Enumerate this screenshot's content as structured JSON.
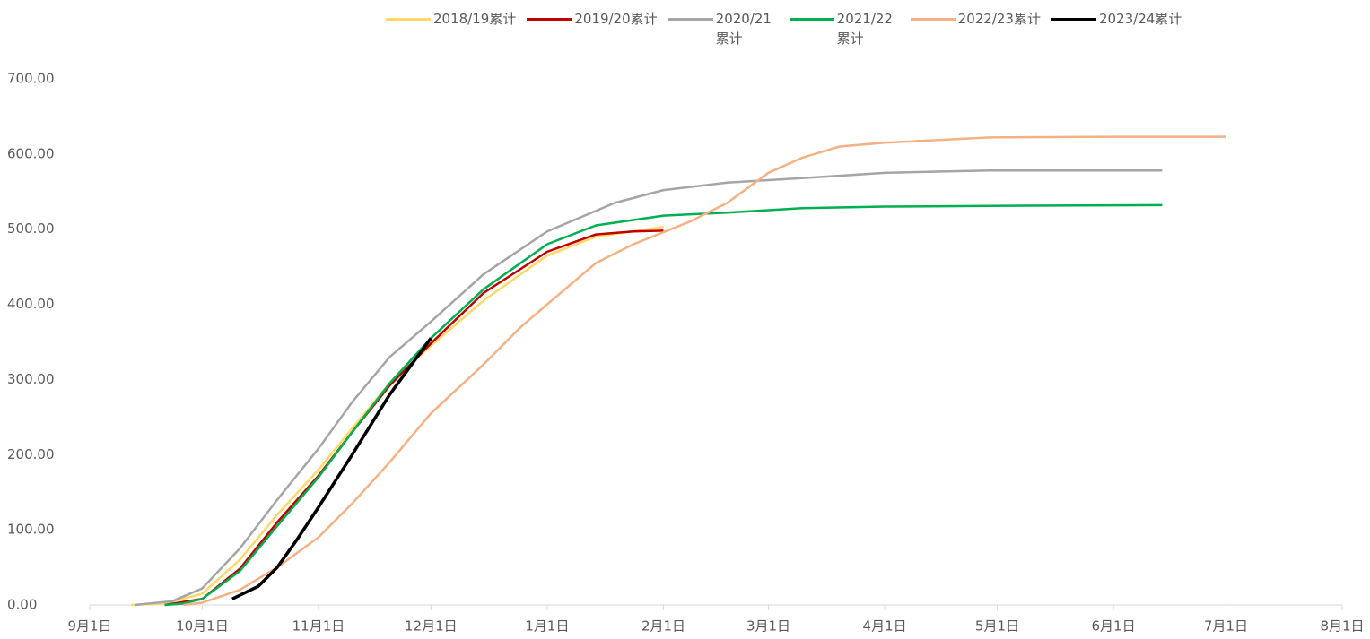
{
  "chart_data": {
    "type": "line",
    "xlim": [
      0,
      334
    ],
    "xticks": [
      {
        "value": 0,
        "label": "9月1日"
      },
      {
        "value": 30,
        "label": "10月1日"
      },
      {
        "value": 61,
        "label": "11月1日"
      },
      {
        "value": 91,
        "label": "12月1日"
      },
      {
        "value": 122,
        "label": "1月1日"
      },
      {
        "value": 153,
        "label": "2月1日"
      },
      {
        "value": 181,
        "label": "3月1日"
      },
      {
        "value": 212,
        "label": "4月1日"
      },
      {
        "value": 242,
        "label": "5月1日"
      },
      {
        "value": 273,
        "label": "6月1日"
      },
      {
        "value": 303,
        "label": "7月1日"
      },
      {
        "value": 334,
        "label": "8月1日"
      }
    ],
    "ylim": [
      0,
      700
    ],
    "yticks": [
      {
        "value": 0,
        "label": "0.00"
      },
      {
        "value": 100,
        "label": "100.00"
      },
      {
        "value": 200,
        "label": "200.00"
      },
      {
        "value": 300,
        "label": "300.00"
      },
      {
        "value": 400,
        "label": "400.00"
      },
      {
        "value": 500,
        "label": "500.00"
      },
      {
        "value": 600,
        "label": "600.00"
      },
      {
        "value": 700,
        "label": "700.00"
      }
    ],
    "series": [
      {
        "name": "2018/19累计",
        "color": "#FFD966",
        "x": [
          11,
          20,
          30,
          40,
          50,
          61,
          70,
          80,
          91,
          105,
          122,
          135,
          153
        ],
        "values": [
          0,
          2,
          15,
          60,
          120,
          180,
          235,
          295,
          345,
          405,
          465,
          490,
          503
        ]
      },
      {
        "name": "2019/20累计",
        "color": "#C00000",
        "x": [
          20,
          30,
          40,
          50,
          61,
          70,
          80,
          91,
          105,
          122,
          135,
          145,
          153
        ],
        "values": [
          0,
          8,
          48,
          110,
          172,
          230,
          292,
          348,
          415,
          470,
          493,
          497,
          498
        ]
      },
      {
        "name": "2020/21累计",
        "color": "#A5A5A5",
        "x": [
          12,
          22,
          30,
          40,
          50,
          61,
          70,
          80,
          91,
          105,
          122,
          140,
          153,
          170,
          190,
          212,
          240,
          273,
          286
        ],
        "values": [
          0,
          5,
          22,
          75,
          140,
          208,
          270,
          330,
          377,
          440,
          497,
          535,
          552,
          562,
          568,
          575,
          578,
          578,
          578
        ]
      },
      {
        "name": "2021/22累计",
        "color": "#00B050",
        "x": [
          20,
          25,
          30,
          40,
          50,
          61,
          70,
          80,
          91,
          105,
          122,
          135,
          153,
          170,
          190,
          212,
          240,
          286
        ],
        "values": [
          0,
          2,
          8,
          45,
          105,
          170,
          230,
          295,
          355,
          420,
          480,
          505,
          518,
          522,
          528,
          530,
          531,
          532
        ]
      },
      {
        "name": "2022/23累计",
        "color": "#F4B183",
        "x": [
          25,
          30,
          40,
          50,
          61,
          70,
          80,
          91,
          105,
          115,
          122,
          135,
          145,
          150,
          160,
          170,
          181,
          190,
          200,
          212,
          240,
          273,
          303
        ],
        "values": [
          0,
          3,
          20,
          50,
          90,
          135,
          190,
          255,
          320,
          370,
          400,
          455,
          480,
          490,
          510,
          535,
          575,
          595,
          610,
          615,
          622,
          623,
          623
        ]
      },
      {
        "name": "2023/24累计",
        "color": "#000000",
        "x": [
          38,
          45,
          50,
          55,
          61,
          70,
          80,
          91
        ],
        "values": [
          8,
          25,
          50,
          85,
          130,
          200,
          280,
          355
        ]
      }
    ]
  }
}
